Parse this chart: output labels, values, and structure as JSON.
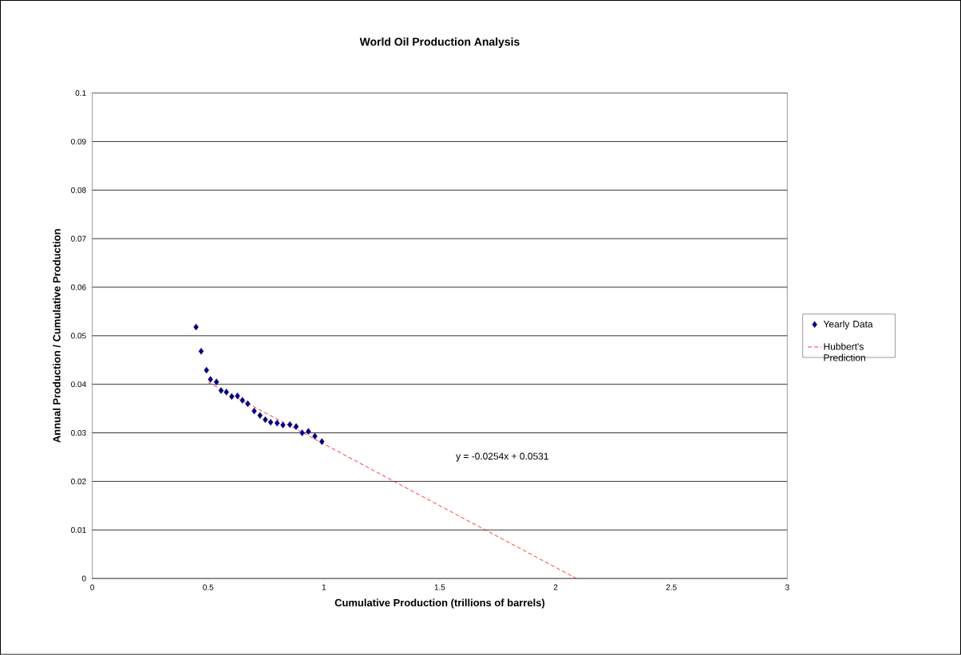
{
  "chart_data": {
    "type": "scatter",
    "title": "World Oil Production Analysis",
    "xlabel": "Cumulative Production (trillions of barrels)",
    "ylabel": "Annual Production / Cumulative Production",
    "xlim": [
      0,
      3
    ],
    "ylim": [
      0,
      0.1
    ],
    "xticks": [
      0,
      0.5,
      1,
      1.5,
      2,
      2.5,
      3
    ],
    "yticks": [
      0,
      0.01,
      0.02,
      0.03,
      0.04,
      0.05,
      0.06,
      0.07,
      0.08,
      0.09,
      0.1
    ],
    "grid": "y",
    "legend": "right",
    "series": [
      {
        "name": "Yearly Data",
        "marker": "diamond",
        "color": "#000080",
        "x": [
          0.448,
          0.47,
          0.493,
          0.51,
          0.536,
          0.556,
          0.579,
          0.602,
          0.627,
          0.648,
          0.671,
          0.699,
          0.724,
          0.747,
          0.77,
          0.798,
          0.823,
          0.853,
          0.88,
          0.906,
          0.933,
          0.961,
          0.991
        ],
        "values": [
          0.0518,
          0.0468,
          0.0429,
          0.041,
          0.0405,
          0.0387,
          0.0384,
          0.0375,
          0.0376,
          0.0367,
          0.036,
          0.0345,
          0.0336,
          0.0327,
          0.0322,
          0.032,
          0.0316,
          0.0317,
          0.0313,
          0.03,
          0.0303,
          0.0293,
          0.0282
        ]
      },
      {
        "name": "Hubbert's Prediction",
        "type": "line",
        "line_style": "dashed",
        "marker": "none",
        "color": "#ff0000",
        "x": [
          0.5,
          2.09
        ],
        "values": [
          0.0404,
          0
        ]
      }
    ],
    "annotations": [
      "y = -0.0254x + 0.0531"
    ]
  }
}
